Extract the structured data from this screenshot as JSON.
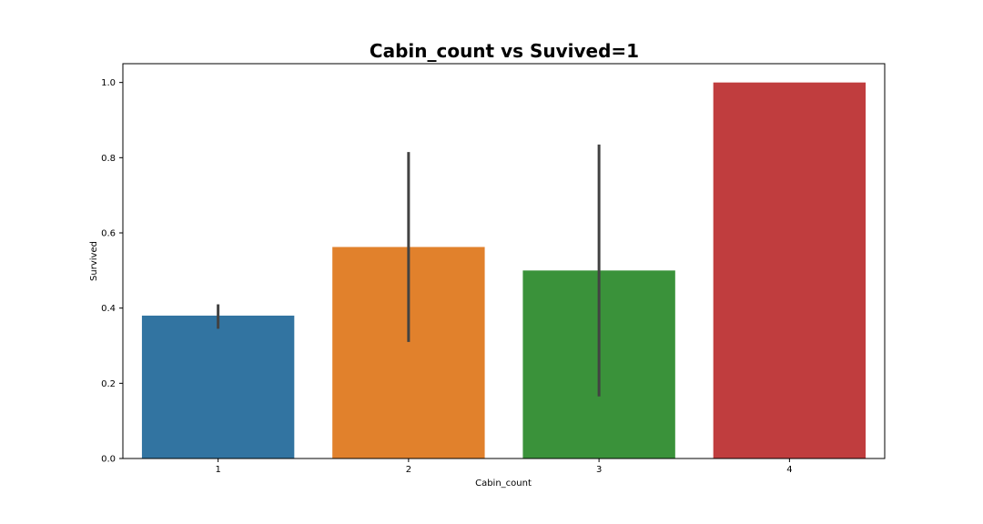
{
  "chart_data": {
    "type": "bar",
    "title": "Cabin_count vs Suvived=1",
    "xlabel": "Cabin_count",
    "ylabel": "Survived",
    "categories": [
      "1",
      "2",
      "3",
      "4"
    ],
    "values": [
      0.38,
      0.5625,
      0.5,
      1.0
    ],
    "error_bars": [
      [
        0.345,
        0.41
      ],
      [
        0.31,
        0.815
      ],
      [
        0.165,
        0.835
      ],
      null
    ],
    "colors": [
      "#3274a1",
      "#e1812c",
      "#3a923a",
      "#c03d3e"
    ],
    "error_color": "#424242",
    "ylim": [
      0,
      1.05
    ],
    "yticks": [
      "0.0",
      "0.2",
      "0.4",
      "0.6",
      "0.8",
      "1.0"
    ],
    "grid": false,
    "legend": "none"
  }
}
